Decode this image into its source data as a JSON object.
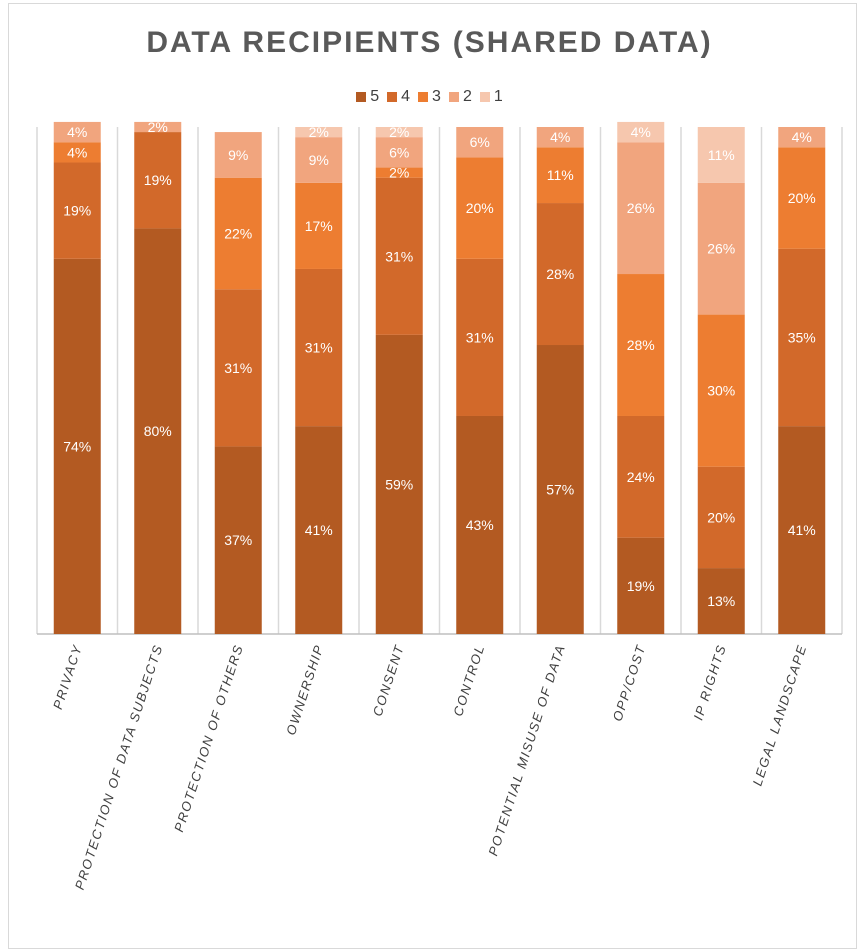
{
  "chart_data": {
    "type": "bar",
    "stacked": true,
    "percent_stacked": true,
    "title": "DATA RECIPIENTS (SHARED DATA)",
    "xlabel": "",
    "ylabel": "",
    "ylim": [
      0,
      100
    ],
    "grid": false,
    "legend_position": "top",
    "categories": [
      "PRIVACY",
      "PROTECTION OF DATA SUBJECTS",
      "PROTECTION OF OTHERS",
      "OWNERSHIP",
      "CONSENT",
      "CONTROL",
      "POTENTIAL MISUSE OF DATA",
      "OPP/COST",
      "IP RIGHTS",
      "LEGAL LANDSCAPE"
    ],
    "series": [
      {
        "name": "5",
        "color": "#B35A22",
        "values": [
          74,
          80,
          37,
          41,
          59,
          43,
          57,
          19,
          13,
          41
        ]
      },
      {
        "name": "4",
        "color": "#D2692A",
        "values": [
          19,
          19,
          31,
          31,
          31,
          31,
          28,
          24,
          20,
          35
        ]
      },
      {
        "name": "3",
        "color": "#ED7D31",
        "values": [
          4,
          0,
          22,
          17,
          2,
          20,
          11,
          28,
          30,
          20
        ]
      },
      {
        "name": "2",
        "color": "#F1A57E",
        "values": [
          4,
          2,
          9,
          9,
          6,
          6,
          4,
          26,
          26,
          4
        ]
      },
      {
        "name": "1",
        "color": "#F6C7AE",
        "values": [
          0,
          0,
          0,
          2,
          2,
          0,
          0,
          4,
          11,
          0
        ]
      }
    ],
    "data_labels": true,
    "label_suffix": "%"
  }
}
